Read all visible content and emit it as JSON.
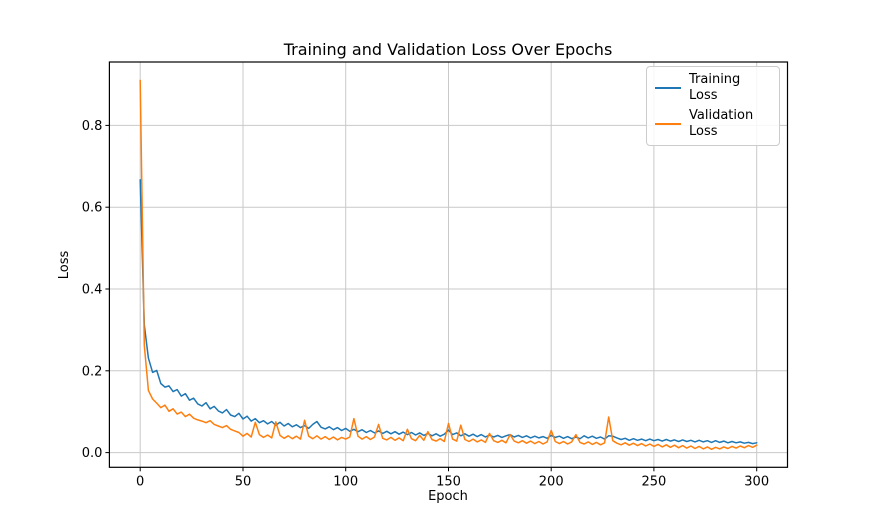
{
  "figure": {
    "background": "#ffffff",
    "grid_color": "#c9c9c9",
    "spine_color": "#000000",
    "text_color": "#000000"
  },
  "chart_data": {
    "type": "line",
    "title": "Training and Validation Loss Over Epochs",
    "xlabel": "Epoch",
    "ylabel": "Loss",
    "xlim": [
      -15,
      315
    ],
    "ylim": [
      -0.036,
      0.955
    ],
    "grid": true,
    "legend_position": "upper right",
    "x_ticks": [
      0,
      50,
      100,
      150,
      200,
      250,
      300
    ],
    "x_tick_labels": [
      "0",
      "50",
      "100",
      "150",
      "200",
      "250",
      "300"
    ],
    "y_ticks": [
      0.0,
      0.2,
      0.4,
      0.6,
      0.8
    ],
    "y_tick_labels": [
      "0.0",
      "0.2",
      "0.4",
      "0.6",
      "0.8"
    ],
    "x_start": 0,
    "x_step": 2,
    "series": [
      {
        "name": "Training Loss",
        "color": "#1f77b4",
        "values": [
          0.667,
          0.312,
          0.231,
          0.196,
          0.201,
          0.169,
          0.16,
          0.163,
          0.149,
          0.154,
          0.138,
          0.144,
          0.128,
          0.133,
          0.119,
          0.114,
          0.122,
          0.107,
          0.113,
          0.102,
          0.097,
          0.105,
          0.092,
          0.088,
          0.096,
          0.082,
          0.089,
          0.077,
          0.083,
          0.073,
          0.078,
          0.07,
          0.076,
          0.067,
          0.074,
          0.065,
          0.071,
          0.063,
          0.068,
          0.061,
          0.066,
          0.059,
          0.069,
          0.076,
          0.062,
          0.058,
          0.063,
          0.056,
          0.061,
          0.054,
          0.059,
          0.052,
          0.057,
          0.051,
          0.056,
          0.049,
          0.054,
          0.048,
          0.053,
          0.047,
          0.052,
          0.046,
          0.051,
          0.045,
          0.05,
          0.044,
          0.049,
          0.043,
          0.048,
          0.042,
          0.047,
          0.041,
          0.046,
          0.04,
          0.045,
          0.055,
          0.044,
          0.048,
          0.041,
          0.046,
          0.04,
          0.045,
          0.039,
          0.044,
          0.038,
          0.043,
          0.038,
          0.042,
          0.037,
          0.041,
          0.044,
          0.038,
          0.042,
          0.037,
          0.041,
          0.036,
          0.04,
          0.036,
          0.039,
          0.035,
          0.042,
          0.037,
          0.04,
          0.035,
          0.039,
          0.034,
          0.038,
          0.034,
          0.041,
          0.036,
          0.04,
          0.035,
          0.038,
          0.033,
          0.041,
          0.04,
          0.036,
          0.032,
          0.035,
          0.03,
          0.034,
          0.03,
          0.033,
          0.029,
          0.033,
          0.029,
          0.032,
          0.028,
          0.032,
          0.028,
          0.031,
          0.027,
          0.031,
          0.027,
          0.03,
          0.026,
          0.03,
          0.026,
          0.029,
          0.025,
          0.029,
          0.025,
          0.028,
          0.024,
          0.027,
          0.024,
          0.026,
          0.023,
          0.025,
          0.022,
          0.024
        ]
      },
      {
        "name": "Validation Loss",
        "color": "#ff7f0e",
        "values": [
          0.91,
          0.262,
          0.152,
          0.131,
          0.121,
          0.11,
          0.116,
          0.101,
          0.107,
          0.094,
          0.099,
          0.088,
          0.094,
          0.084,
          0.08,
          0.077,
          0.073,
          0.078,
          0.069,
          0.065,
          0.061,
          0.066,
          0.057,
          0.053,
          0.049,
          0.04,
          0.047,
          0.038,
          0.074,
          0.044,
          0.037,
          0.043,
          0.036,
          0.075,
          0.042,
          0.035,
          0.041,
          0.034,
          0.04,
          0.033,
          0.079,
          0.04,
          0.034,
          0.041,
          0.033,
          0.039,
          0.032,
          0.038,
          0.031,
          0.037,
          0.033,
          0.038,
          0.083,
          0.04,
          0.033,
          0.039,
          0.032,
          0.038,
          0.069,
          0.035,
          0.031,
          0.037,
          0.03,
          0.036,
          0.029,
          0.057,
          0.034,
          0.029,
          0.042,
          0.03,
          0.051,
          0.032,
          0.028,
          0.034,
          0.027,
          0.071,
          0.033,
          0.028,
          0.067,
          0.032,
          0.027,
          0.033,
          0.026,
          0.031,
          0.025,
          0.047,
          0.029,
          0.025,
          0.03,
          0.024,
          0.044,
          0.028,
          0.024,
          0.029,
          0.023,
          0.028,
          0.022,
          0.027,
          0.021,
          0.026,
          0.054,
          0.027,
          0.022,
          0.027,
          0.021,
          0.026,
          0.044,
          0.025,
          0.021,
          0.026,
          0.02,
          0.025,
          0.019,
          0.024,
          0.087,
          0.029,
          0.023,
          0.019,
          0.024,
          0.018,
          0.023,
          0.017,
          0.022,
          0.016,
          0.021,
          0.015,
          0.02,
          0.014,
          0.019,
          0.013,
          0.018,
          0.012,
          0.017,
          0.011,
          0.016,
          0.01,
          0.015,
          0.009,
          0.014,
          0.008,
          0.013,
          0.009,
          0.014,
          0.01,
          0.015,
          0.011,
          0.016,
          0.012,
          0.017,
          0.013,
          0.018
        ]
      }
    ]
  }
}
